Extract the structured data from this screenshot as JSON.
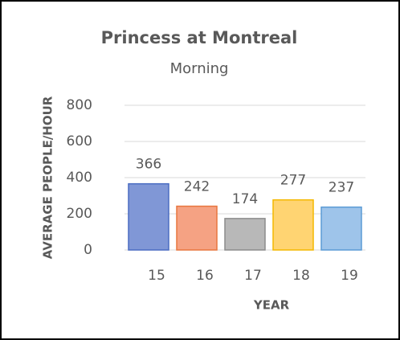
{
  "chart_data": {
    "type": "bar",
    "title": "Princess at Montreal",
    "subtitle": "Morning",
    "x_label": "YEAR",
    "y_label": "AVERAGE PEOPLE/HOUR",
    "categories": [
      "15",
      "16",
      "17",
      "18",
      "19"
    ],
    "values": [
      366,
      242,
      174,
      277,
      237
    ],
    "colors": [
      "#8097d6",
      "#f5a283",
      "#b8b8b8",
      "#ffd472",
      "#9ec4ea"
    ],
    "edge_colors": [
      "#4a6cc2",
      "#e8763f",
      "#8c8c8c",
      "#f4b800",
      "#5b9bd5"
    ],
    "ylim": [
      0,
      800
    ],
    "yticks": [
      0,
      200,
      400,
      600,
      800
    ],
    "grid": true
  }
}
